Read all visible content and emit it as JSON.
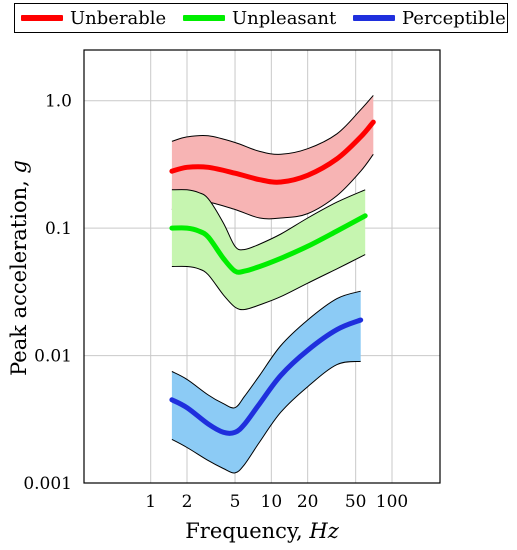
{
  "chart_data": {
    "type": "area",
    "title": "",
    "xlabel": "Frequency, ",
    "xlabel_unit": "Hz",
    "ylabel": "Peak acceleration, ",
    "ylabel_unit": "g",
    "xscale": "log",
    "yscale": "log",
    "xlim": [
      0.28,
      250
    ],
    "ylim": [
      0.001,
      2.5
    ],
    "xticks": [
      1,
      2,
      5,
      10,
      20,
      50,
      100
    ],
    "xtick_labels": [
      "1",
      "2",
      "5",
      "10",
      "20",
      "50",
      "100"
    ],
    "yticks": [
      0.001,
      0.01,
      0.1,
      1.0
    ],
    "ytick_labels": [
      "0.001",
      "0.01",
      "0.1",
      "1.0"
    ],
    "grid": true,
    "legend_position": "top",
    "series": [
      {
        "name": "Unberable",
        "color": "#ff0000",
        "fill": "#f7b4b4",
        "x": [
          1.5,
          2,
          3,
          5,
          8,
          12,
          20,
          35,
          55,
          70
        ],
        "y": [
          0.28,
          0.3,
          0.3,
          0.27,
          0.24,
          0.23,
          0.26,
          0.35,
          0.52,
          0.68
        ],
        "upper": [
          0.48,
          0.52,
          0.53,
          0.47,
          0.4,
          0.38,
          0.42,
          0.55,
          0.85,
          1.1
        ],
        "lower": [
          0.14,
          0.16,
          0.16,
          0.14,
          0.12,
          0.12,
          0.13,
          0.18,
          0.28,
          0.38
        ]
      },
      {
        "name": "Unpleasant",
        "color": "#00ee00",
        "fill": "#c6f5b0",
        "x": [
          1.5,
          2,
          2.5,
          3,
          4,
          5,
          6,
          8,
          12,
          20,
          35,
          60
        ],
        "y": [
          0.1,
          0.1,
          0.095,
          0.085,
          0.058,
          0.046,
          0.046,
          0.05,
          0.058,
          0.072,
          0.095,
          0.125
        ],
        "upper": [
          0.2,
          0.2,
          0.19,
          0.17,
          0.11,
          0.072,
          0.068,
          0.075,
          0.09,
          0.12,
          0.16,
          0.2
        ],
        "lower": [
          0.05,
          0.05,
          0.048,
          0.043,
          0.03,
          0.024,
          0.023,
          0.025,
          0.029,
          0.037,
          0.048,
          0.062
        ]
      },
      {
        "name": "Perceptible",
        "color": "#1f2fdd",
        "fill": "#8ccbf5",
        "x": [
          1.5,
          2,
          3,
          4,
          5,
          6,
          8,
          12,
          20,
          35,
          55
        ],
        "y": [
          0.0045,
          0.0039,
          0.0029,
          0.0025,
          0.0025,
          0.0029,
          0.0042,
          0.007,
          0.011,
          0.016,
          0.019
        ],
        "upper": [
          0.0075,
          0.0065,
          0.0049,
          0.0042,
          0.0039,
          0.0048,
          0.007,
          0.012,
          0.019,
          0.028,
          0.032
        ],
        "lower": [
          0.0022,
          0.0019,
          0.0015,
          0.0013,
          0.0012,
          0.0014,
          0.0021,
          0.0036,
          0.0057,
          0.0085,
          0.009
        ]
      }
    ]
  }
}
